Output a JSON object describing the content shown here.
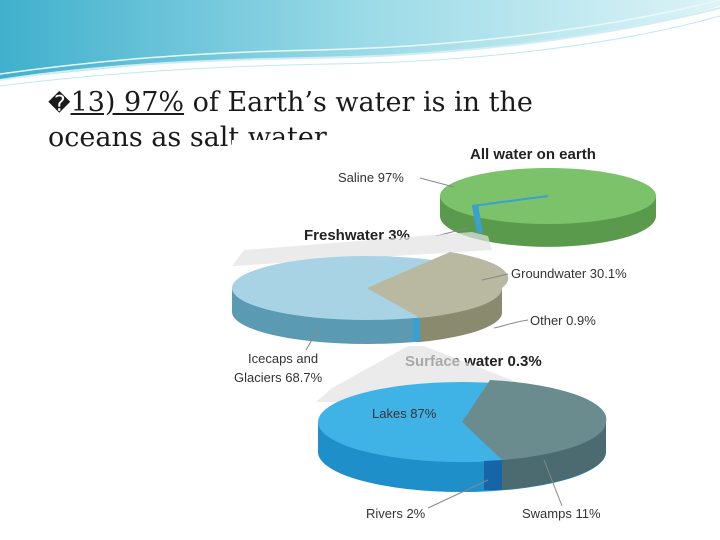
{
  "slide": {
    "bullet_glyph": "�",
    "point_underlined": "13) 97%",
    "point_rest": " of Earth’s water is in the oceans as salt water"
  },
  "diagram": {
    "title": "All water on earth",
    "all_water": {
      "saline": "Saline 97%",
      "freshwater": "Freshwater 3%"
    },
    "freshwater": {
      "groundwater": "Groundwater 30.1%",
      "other": "Other 0.9%",
      "icecaps_line1": "Icecaps and",
      "icecaps_line2": "Glaciers 68.7%",
      "surface": "Surface water 0.3%"
    },
    "surface": {
      "lakes": "Lakes 87%",
      "rivers": "Rivers 2%",
      "swamps": "Swamps 11%"
    },
    "colors": {
      "saline_green": "#7cc26a",
      "ice_blue": "#a8d3e4",
      "ground_gray": "#b9b8a0",
      "lake_blue": "#3fb3e6",
      "swamp_gray": "#6b8c8f"
    }
  }
}
